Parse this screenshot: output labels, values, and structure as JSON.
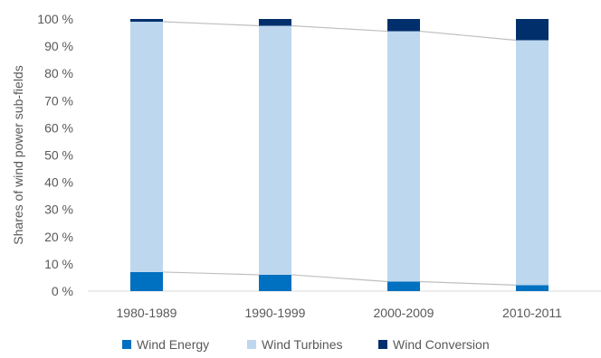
{
  "chart_data": {
    "type": "bar",
    "stacked": true,
    "percent": true,
    "categories": [
      "1980-1989",
      "1990-1999",
      "2000-2009",
      "2010-2011"
    ],
    "series": [
      {
        "name": "Wind Energy",
        "values": [
          7,
          6,
          3.5,
          2.2
        ],
        "color": "#0070C0"
      },
      {
        "name": "Wind Turbines",
        "values": [
          92,
          91.5,
          92,
          90
        ],
        "color": "#BDD7EE"
      },
      {
        "name": "Wind Conversion",
        "values": [
          1,
          2.5,
          4.5,
          7.8
        ],
        "color": "#002F6C"
      }
    ],
    "ylabel": "Shares of wind power sub-fields",
    "ylim": [
      0,
      100
    ],
    "yticks": [
      "0 %",
      "10 %",
      "20 %",
      "30 %",
      "40 %",
      "50 %",
      "60 %",
      "70 %",
      "80 %",
      "90 %",
      "100 %"
    ],
    "grid": false,
    "series_lines": true,
    "legend": "bottom"
  }
}
